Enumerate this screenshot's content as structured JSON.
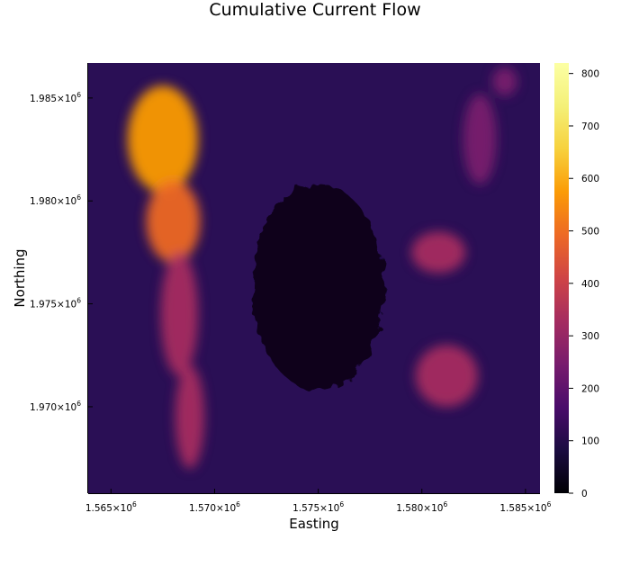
{
  "chart_data": {
    "type": "heatmap",
    "title": "Cumulative Current Flow",
    "xlabel": "Easting",
    "ylabel": "Northing",
    "colormap": "inferno",
    "x_ticks": [
      {
        "value": 1565000,
        "mant": "1.565×10",
        "exp": "6"
      },
      {
        "value": 1570000,
        "mant": "1.570×10",
        "exp": "6"
      },
      {
        "value": 1575000,
        "mant": "1.575×10",
        "exp": "6"
      },
      {
        "value": 1580000,
        "mant": "1.580×10",
        "exp": "6"
      },
      {
        "value": 1585000,
        "mant": "1.585×10",
        "exp": "6"
      }
    ],
    "y_ticks": [
      {
        "value": 1970000,
        "mant": "1.970×10",
        "exp": "6"
      },
      {
        "value": 1975000,
        "mant": "1.975×10",
        "exp": "6"
      },
      {
        "value": 1980000,
        "mant": "1.980×10",
        "exp": "6"
      },
      {
        "value": 1985000,
        "mant": "1.985×10",
        "exp": "6"
      }
    ],
    "xlim": [
      1563900,
      1585700
    ],
    "ylim": [
      1965800,
      1986700
    ],
    "colorbar": {
      "min": 0,
      "max": 820,
      "ticks": [
        "0",
        "100",
        "200",
        "300",
        "400",
        "500",
        "600",
        "700",
        "800"
      ]
    },
    "features": {
      "high_flow_regions": [
        {
          "easting": 1567500,
          "northing": 1983000,
          "value": 560,
          "spread_e": 1700,
          "spread_n": 2600
        },
        {
          "easting": 1568000,
          "northing": 1979000,
          "value": 520,
          "spread_e": 1300,
          "spread_n": 2000
        },
        {
          "easting": 1568300,
          "northing": 1974500,
          "value": 340,
          "spread_e": 900,
          "spread_n": 3000
        },
        {
          "easting": 1568800,
          "northing": 1969500,
          "value": 300,
          "spread_e": 700,
          "spread_n": 2500
        },
        {
          "easting": 1581200,
          "northing": 1971500,
          "value": 320,
          "spread_e": 1500,
          "spread_n": 1500
        },
        {
          "easting": 1580800,
          "northing": 1977500,
          "value": 300,
          "spread_e": 1300,
          "spread_n": 1000
        },
        {
          "easting": 1582800,
          "northing": 1983000,
          "value": 280,
          "spread_e": 800,
          "spread_n": 2200
        },
        {
          "easting": 1584000,
          "northing": 1985800,
          "value": 260,
          "spread_e": 600,
          "spread_n": 700
        }
      ],
      "no_data_region": {
        "easting": 1575000,
        "northing": 1975800,
        "radius_e": 3200,
        "radius_n": 5000
      }
    }
  }
}
